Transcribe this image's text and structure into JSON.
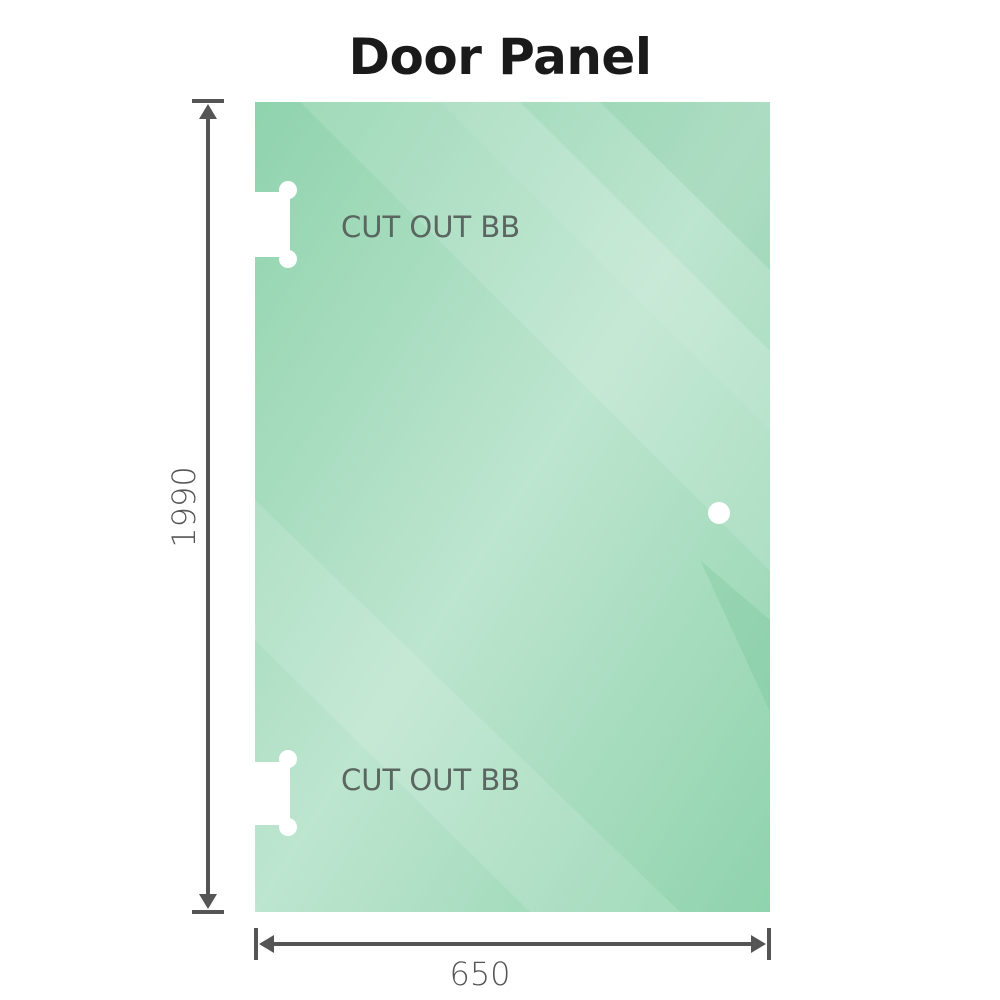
{
  "title": "Door Panel",
  "cutouts": [
    "CUT OUT BB",
    "CUT OUT BB"
  ],
  "dimensions": {
    "height": "1990",
    "width": "650"
  },
  "colors": {
    "glass": "#86cfa6",
    "glass_light": "#bde5cf",
    "dimension_line": "#555555"
  }
}
